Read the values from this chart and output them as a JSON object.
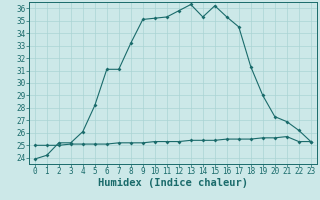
{
  "xlabel": "Humidex (Indice chaleur)",
  "background_color": "#cce8e8",
  "line_color": "#1a6b6b",
  "xlim": [
    -0.5,
    23.5
  ],
  "ylim": [
    23.5,
    36.5
  ],
  "xticks": [
    0,
    1,
    2,
    3,
    4,
    5,
    6,
    7,
    8,
    9,
    10,
    11,
    12,
    13,
    14,
    15,
    16,
    17,
    18,
    19,
    20,
    21,
    22,
    23
  ],
  "yticks": [
    24,
    25,
    26,
    27,
    28,
    29,
    30,
    31,
    32,
    33,
    34,
    35,
    36
  ],
  "humidex_curve": [
    23.9,
    24.2,
    25.2,
    25.2,
    26.1,
    28.2,
    31.1,
    31.1,
    33.2,
    35.1,
    35.2,
    35.3,
    35.8,
    36.3,
    35.3,
    36.2,
    35.3,
    34.5,
    31.3,
    29.0,
    27.3,
    26.9,
    26.2,
    25.3
  ],
  "flat_curve": [
    25.0,
    25.0,
    25.0,
    25.1,
    25.1,
    25.1,
    25.1,
    25.2,
    25.2,
    25.2,
    25.3,
    25.3,
    25.3,
    25.4,
    25.4,
    25.4,
    25.5,
    25.5,
    25.5,
    25.6,
    25.6,
    25.7,
    25.3,
    25.3
  ],
  "grid_color": "#aad4d4",
  "tick_fontsize": 5.5,
  "xlabel_fontsize": 7.5,
  "marker_size": 2.0,
  "line_width": 0.8
}
